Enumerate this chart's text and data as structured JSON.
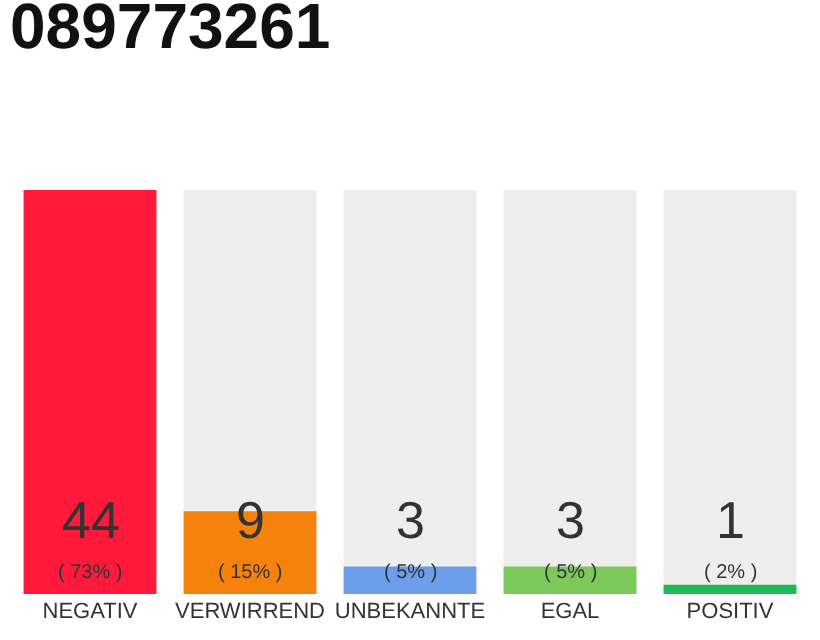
{
  "chart_data": {
    "type": "bar",
    "title": "089773261",
    "categories": [
      "NEGATIV",
      "VERWIRREND",
      "UNBEKANNTE",
      "EGAL",
      "POSITIV"
    ],
    "values": [
      44,
      9,
      3,
      3,
      1
    ],
    "colors": [
      "#ff1a3c",
      "#f5820d",
      "#6d9eeb",
      "#7dc85a",
      "#1db954"
    ],
    "value_labels": [
      "44\n( 73% )",
      "9\n( 15% )",
      "3\n( 5% )",
      "3\n( 5% )",
      "1\n( 2% )"
    ],
    "grid": false,
    "legend": false
  }
}
